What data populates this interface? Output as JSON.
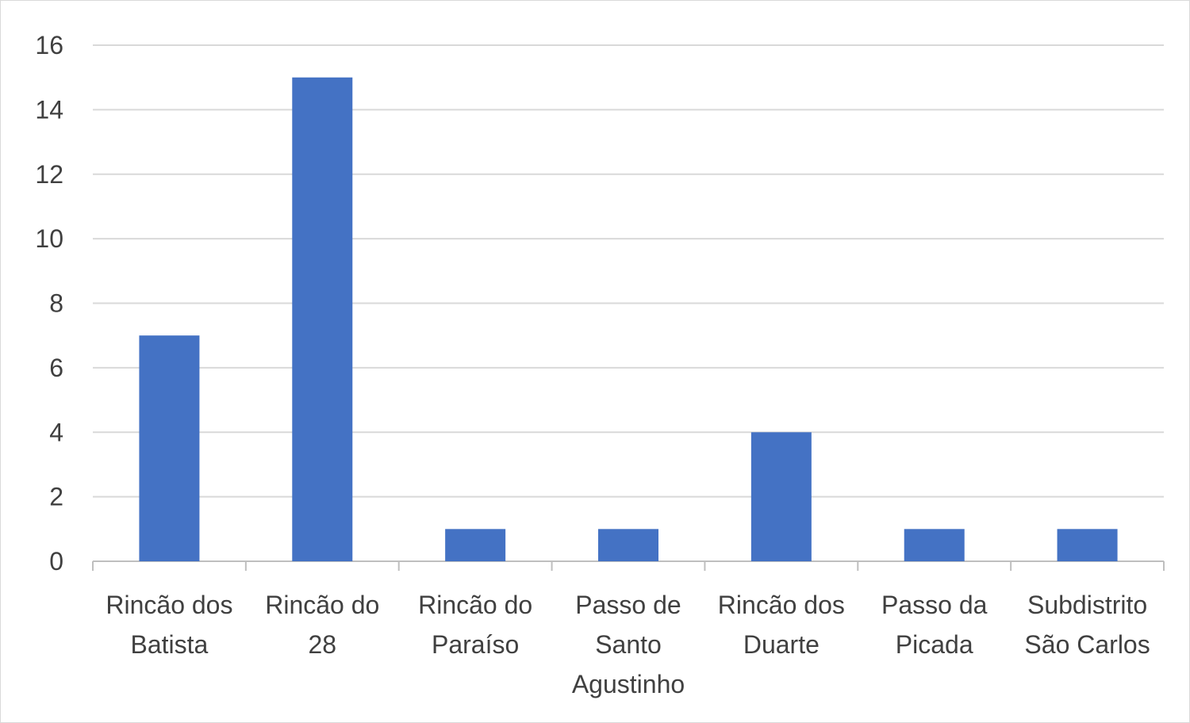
{
  "chart_data": {
    "type": "bar",
    "categories": [
      "Rincão dos Batista",
      "Rincão do 28",
      "Rincão do Paraíso",
      "Passo de Santo Agustinho",
      "Rincão dos Duarte",
      "Passo da Picada",
      "Subdistrito São Carlos"
    ],
    "values": [
      7,
      15,
      1,
      1,
      4,
      1,
      1
    ],
    "color": "#4472c4",
    "ylim": [
      0,
      16
    ],
    "yticks": [
      0,
      2,
      4,
      6,
      8,
      10,
      12,
      14,
      16
    ],
    "grid": true
  }
}
